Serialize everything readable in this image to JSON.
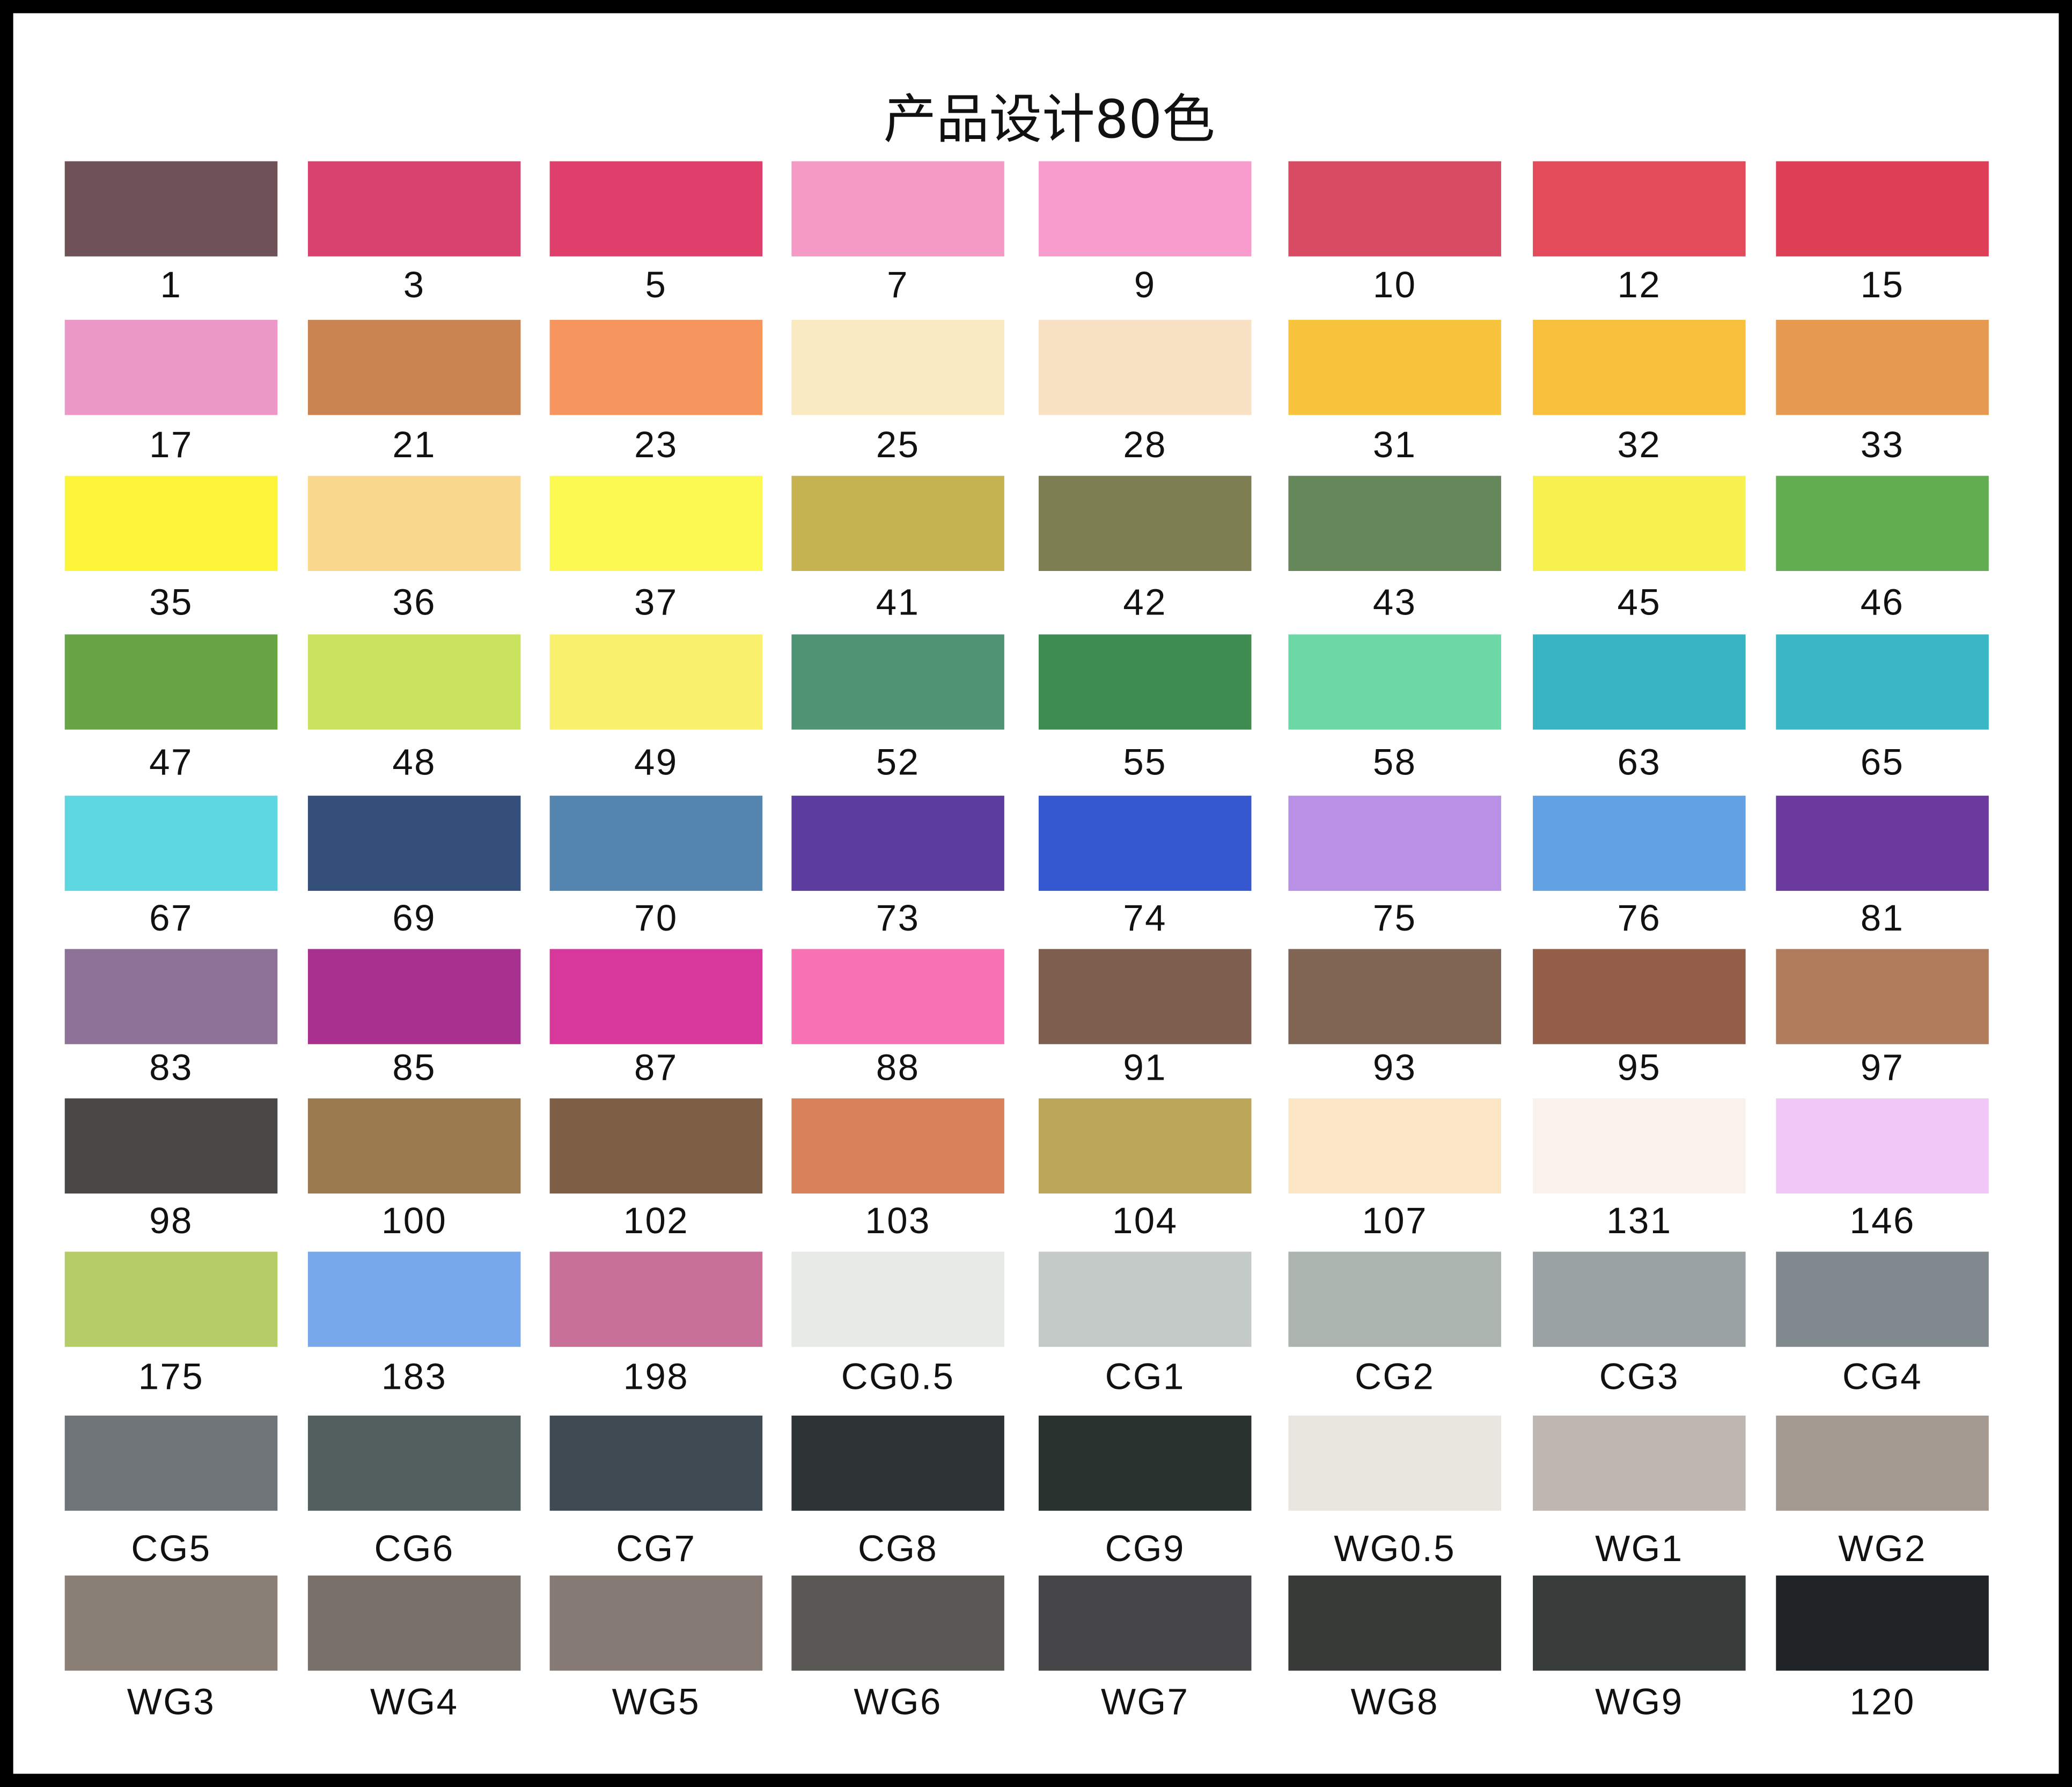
{
  "title": "产品设计80色",
  "swatches": [
    {
      "label": "1",
      "color": "#6e5258"
    },
    {
      "label": "3",
      "color": "#d9416f"
    },
    {
      "label": "5",
      "color": "#e03f6c"
    },
    {
      "label": "7",
      "color": "#f59ac4"
    },
    {
      "label": "9",
      "color": "#f79ccc"
    },
    {
      "label": "10",
      "color": "#d94a63"
    },
    {
      "label": "12",
      "color": "#e34a5a"
    },
    {
      "label": "15",
      "color": "#df3f56"
    },
    {
      "label": "17",
      "color": "#ec98c6"
    },
    {
      "label": "21",
      "color": "#c98452"
    },
    {
      "label": "23",
      "color": "#f6955e"
    },
    {
      "label": "25",
      "color": "#faeac2"
    },
    {
      "label": "28",
      "color": "#f9e2c4"
    },
    {
      "label": "31",
      "color": "#f8c43e"
    },
    {
      "label": "32",
      "color": "#f8c03c"
    },
    {
      "label": "33",
      "color": "#e59a4f"
    },
    {
      "label": "35",
      "color": "#fdf53a"
    },
    {
      "label": "36",
      "color": "#fad98e"
    },
    {
      "label": "37",
      "color": "#fcf953"
    },
    {
      "label": "41",
      "color": "#c5b451"
    },
    {
      "label": "42",
      "color": "#7d7f52"
    },
    {
      "label": "43",
      "color": "#65875a"
    },
    {
      "label": "45",
      "color": "#f8f250"
    },
    {
      "label": "46",
      "color": "#62ae50"
    },
    {
      "label": "47",
      "color": "#66a444"
    },
    {
      "label": "48",
      "color": "#c9e35e"
    },
    {
      "label": "49",
      "color": "#f9f06e"
    },
    {
      "label": "52",
      "color": "#4e9474"
    },
    {
      "label": "55",
      "color": "#3e8c52"
    },
    {
      "label": "58",
      "color": "#6ed7a6"
    },
    {
      "label": "63",
      "color": "#38b3c4"
    },
    {
      "label": "65",
      "color": "#3ab6c4"
    },
    {
      "label": "67",
      "color": "#5ed7e0"
    },
    {
      "label": "69",
      "color": "#34507a"
    },
    {
      "label": "70",
      "color": "#5485b0"
    },
    {
      "label": "73",
      "color": "#5a3d9e"
    },
    {
      "label": "74",
      "color": "#3558d0"
    },
    {
      "label": "75",
      "color": "#b890e6"
    },
    {
      "label": "76",
      "color": "#62a2e2"
    },
    {
      "label": "81",
      "color": "#6a3a9e"
    },
    {
      "label": "83",
      "color": "#8e7196"
    },
    {
      "label": "85",
      "color": "#a8308e"
    },
    {
      "label": "87",
      "color": "#d8389c"
    },
    {
      "label": "88",
      "color": "#f672b4"
    },
    {
      "label": "91",
      "color": "#7e5e4e"
    },
    {
      "label": "93",
      "color": "#806454"
    },
    {
      "label": "95",
      "color": "#945e48"
    },
    {
      "label": "97",
      "color": "#b07c5c"
    },
    {
      "label": "98",
      "color": "#4a4846"
    },
    {
      "label": "100",
      "color": "#9a7a4e"
    },
    {
      "label": "102",
      "color": "#7e5e44"
    },
    {
      "label": "103",
      "color": "#d9825a"
    },
    {
      "label": "104",
      "color": "#bca65a"
    },
    {
      "label": "107",
      "color": "#fbe5c4"
    },
    {
      "label": "131",
      "color": "#fbf1ec"
    },
    {
      "label": "146",
      "color": "#f0c8f6"
    },
    {
      "label": "175",
      "color": "#b6cc66"
    },
    {
      "label": "183",
      "color": "#78a8ec"
    },
    {
      "label": "198",
      "color": "#c87098"
    },
    {
      "label": "CG0.5",
      "color": "#e6ebe6"
    },
    {
      "label": "CG1",
      "color": "#c4cac8"
    },
    {
      "label": "CG2",
      "color": "#acb4b0"
    },
    {
      "label": "CG3",
      "color": "#9aa2a4"
    },
    {
      "label": "CG4",
      "color": "#808a8e"
    },
    {
      "label": "CG5",
      "color": "#6e7478"
    },
    {
      "label": "CG6",
      "color": "#535e5e"
    },
    {
      "label": "CG7",
      "color": "#404a52"
    },
    {
      "label": "CG8",
      "color": "#2e3434"
    },
    {
      "label": "CG9",
      "color": "#2a3230"
    },
    {
      "label": "WG0.5",
      "color": "#e8e6de"
    },
    {
      "label": "WG1",
      "color": "#c0b6b0"
    },
    {
      "label": "WG2",
      "color": "#a49a92"
    },
    {
      "label": "WG3",
      "color": "#8a8078"
    },
    {
      "label": "WG4",
      "color": "#7a706a"
    },
    {
      "label": "WG5",
      "color": "#867a74"
    },
    {
      "label": "WG6",
      "color": "#5a5854"
    },
    {
      "label": "WG7",
      "color": "#464648"
    },
    {
      "label": "WG8",
      "color": "#383a38"
    },
    {
      "label": "WG9",
      "color": "#383c3a"
    },
    {
      "label": "120",
      "color": "#202426"
    }
  ]
}
